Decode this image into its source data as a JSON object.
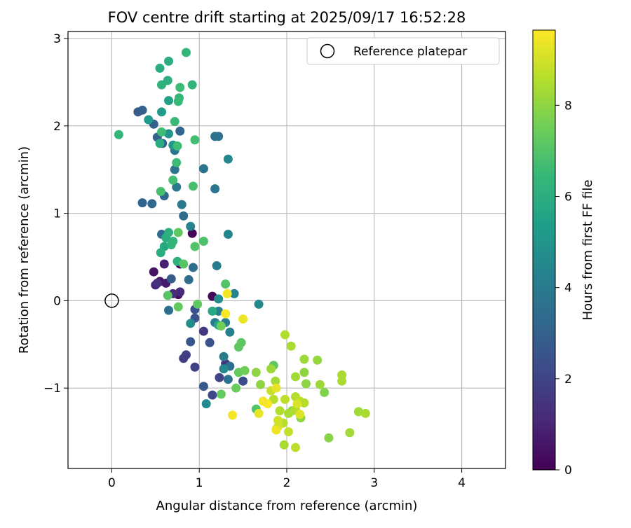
{
  "chart_data": {
    "type": "scatter",
    "title": "FOV centre drift starting at 2025/09/17 16:52:28",
    "xlabel": "Angular distance from reference (arcmin)",
    "ylabel": "Rotation from reference (arcmin)",
    "xlim": [
      -0.5,
      4.5
    ],
    "ylim": [
      -1.92,
      3.08
    ],
    "xticks": [
      0,
      1,
      2,
      3,
      4
    ],
    "yticks": [
      -1,
      0,
      1,
      2,
      3
    ],
    "grid": true,
    "legend": {
      "position": "top-right",
      "entries": [
        "Reference platepar"
      ]
    },
    "reference_point": {
      "x": 0,
      "y": 0,
      "label": "Reference platepar"
    },
    "colorbar": {
      "label": "Hours from first FF file",
      "colormap": "viridis",
      "range": [
        0,
        9.65
      ],
      "ticks": [
        0,
        2,
        4,
        6,
        8
      ]
    },
    "colors": {
      "viridis": [
        "#440154",
        "#482878",
        "#3e4989",
        "#31688e",
        "#26828e",
        "#1f9e89",
        "#35b779",
        "#6ece58",
        "#b5de2b",
        "#fde725"
      ]
    },
    "series": [
      {
        "points": [
          [
            0.92,
            0.77,
            0.1
          ],
          [
            0.78,
            0.42,
            0.15
          ],
          [
            1.15,
            0.05,
            0.2
          ],
          [
            0.76,
            0.07,
            0.3
          ],
          [
            0.48,
            0.33,
            0.5
          ],
          [
            0.55,
            0.22,
            0.6
          ],
          [
            0.62,
            0.2,
            0.7
          ],
          [
            0.6,
            0.42,
            0.9
          ],
          [
            0.5,
            0.18,
            1.0
          ],
          [
            0.78,
            0.1,
            1.1
          ],
          [
            0.7,
            0.08,
            1.2
          ],
          [
            0.52,
            0.2,
            1.3
          ],
          [
            1.3,
            -0.72,
            1.5
          ],
          [
            1.05,
            -0.35,
            1.6
          ],
          [
            0.82,
            -0.66,
            1.7
          ],
          [
            0.85,
            -0.62,
            1.8
          ],
          [
            0.95,
            -0.76,
            1.9
          ],
          [
            1.23,
            -0.88,
            2.0
          ],
          [
            1.15,
            -1.08,
            2.1
          ],
          [
            1.5,
            -0.92,
            2.3
          ],
          [
            0.95,
            -0.1,
            2.4
          ],
          [
            1.12,
            -0.48,
            2.5
          ],
          [
            0.95,
            -0.2,
            2.5
          ],
          [
            0.9,
            -0.47,
            2.6
          ],
          [
            1.05,
            -0.98,
            2.7
          ],
          [
            0.68,
            0.25,
            2.8
          ],
          [
            0.3,
            2.16,
            2.8
          ],
          [
            0.35,
            2.18,
            2.9
          ],
          [
            0.48,
            2.02,
            2.9
          ],
          [
            0.52,
            1.87,
            3.0
          ],
          [
            0.58,
            1.8,
            3.0
          ],
          [
            0.78,
            1.94,
            3.1
          ],
          [
            0.35,
            1.12,
            3.1
          ],
          [
            0.46,
            1.11,
            3.2
          ],
          [
            0.6,
            1.2,
            3.2
          ],
          [
            0.57,
            0.76,
            3.3
          ],
          [
            0.82,
            0.97,
            3.3
          ],
          [
            0.93,
            0.38,
            3.4
          ],
          [
            0.88,
            0.24,
            3.4
          ],
          [
            0.65,
            -0.11,
            3.5
          ],
          [
            1.35,
            -0.75,
            3.5
          ],
          [
            1.33,
            -0.9,
            3.6
          ],
          [
            1.18,
            1.88,
            3.6
          ],
          [
            1.22,
            1.88,
            3.6
          ],
          [
            0.72,
            1.5,
            3.7
          ],
          [
            1.05,
            1.51,
            3.7
          ],
          [
            1.18,
            1.28,
            3.8
          ],
          [
            0.72,
            1.72,
            3.8
          ],
          [
            0.74,
            1.3,
            3.9
          ],
          [
            0.8,
            1.1,
            3.9
          ],
          [
            1.2,
            0.4,
            4.0
          ],
          [
            1.28,
            -0.64,
            4.0
          ],
          [
            1.18,
            -0.25,
            4.0
          ],
          [
            1.22,
            -0.12,
            4.1
          ],
          [
            1.3,
            -0.25,
            4.1
          ],
          [
            1.35,
            -0.36,
            4.2
          ],
          [
            1.4,
            0.08,
            4.3
          ],
          [
            0.9,
            0.85,
            4.3
          ],
          [
            1.33,
            0.76,
            4.4
          ],
          [
            1.33,
            1.62,
            4.5
          ],
          [
            1.28,
            -0.78,
            4.5
          ],
          [
            1.68,
            -0.04,
            4.5
          ],
          [
            1.08,
            -1.18,
            4.6
          ],
          [
            0.9,
            -0.26,
            4.7
          ],
          [
            1.22,
            0.02,
            4.7
          ],
          [
            0.7,
            1.78,
            5.0
          ],
          [
            0.65,
            1.91,
            5.0
          ],
          [
            0.42,
            2.07,
            5.2
          ],
          [
            0.57,
            2.16,
            5.3
          ],
          [
            0.65,
            2.29,
            5.5
          ],
          [
            1.15,
            -0.12,
            5.8
          ],
          [
            1.22,
            -0.28,
            5.8
          ],
          [
            0.6,
            0.62,
            5.8
          ],
          [
            0.55,
            1.8,
            5.9
          ],
          [
            0.62,
            0.72,
            6.0
          ],
          [
            0.56,
            0.55,
            6.0
          ],
          [
            0.65,
            0.78,
            6.1
          ],
          [
            0.68,
            0.64,
            6.2
          ],
          [
            0.75,
            0.45,
            6.2
          ],
          [
            0.7,
            0.68,
            6.3
          ],
          [
            0.55,
            2.66,
            6.0
          ],
          [
            0.65,
            2.74,
            6.0
          ],
          [
            0.57,
            2.47,
            6.2
          ],
          [
            0.64,
            2.52,
            6.1
          ],
          [
            0.85,
            2.84,
            6.4
          ],
          [
            0.92,
            2.47,
            6.3
          ],
          [
            0.78,
            2.44,
            6.6
          ],
          [
            0.77,
            2.32,
            6.4
          ],
          [
            0.76,
            2.28,
            6.5
          ],
          [
            0.72,
            2.05,
            6.5
          ],
          [
            0.08,
            1.9,
            6.4
          ],
          [
            0.57,
            1.93,
            6.6
          ],
          [
            0.95,
            1.84,
            6.7
          ],
          [
            0.75,
            1.77,
            6.6
          ],
          [
            0.74,
            1.58,
            6.6
          ],
          [
            0.7,
            1.38,
            6.7
          ],
          [
            0.56,
            1.25,
            6.8
          ],
          [
            0.93,
            1.31,
            6.8
          ],
          [
            0.95,
            0.62,
            7.0
          ],
          [
            0.82,
            0.42,
            7.1
          ],
          [
            0.76,
            0.78,
            7.2
          ],
          [
            1.05,
            0.68,
            6.9
          ],
          [
            0.64,
            0.06,
            7.1
          ],
          [
            0.76,
            -0.07,
            7.3
          ],
          [
            0.98,
            -0.04,
            7.2
          ],
          [
            1.3,
            0.19,
            7.0
          ],
          [
            1.48,
            -0.48,
            7.2
          ],
          [
            1.45,
            -0.53,
            7.2
          ],
          [
            1.25,
            -0.29,
            7.5
          ],
          [
            1.45,
            -0.82,
            7.3
          ],
          [
            1.52,
            -0.8,
            7.5
          ],
          [
            1.42,
            -1.0,
            7.4
          ],
          [
            1.25,
            -1.07,
            7.3
          ],
          [
            1.65,
            -1.24,
            7.0
          ],
          [
            1.85,
            -0.74,
            7.2
          ],
          [
            1.65,
            -0.82,
            8.0
          ],
          [
            1.7,
            -0.96,
            8.0
          ],
          [
            1.82,
            -0.78,
            8.2
          ],
          [
            1.87,
            -0.92,
            8.3
          ],
          [
            2.1,
            -0.87,
            8.3
          ],
          [
            2.2,
            -0.67,
            8.2
          ],
          [
            2.35,
            -0.68,
            8.1
          ],
          [
            2.2,
            -0.82,
            8.0
          ],
          [
            2.22,
            -0.95,
            8.0
          ],
          [
            2.05,
            -0.52,
            8.4
          ],
          [
            1.98,
            -0.39,
            8.5
          ],
          [
            2.38,
            -0.96,
            8.2
          ],
          [
            2.43,
            -1.05,
            7.8
          ],
          [
            2.63,
            -0.85,
            8.4
          ],
          [
            2.63,
            -0.92,
            8.4
          ],
          [
            2.1,
            -1.1,
            8.5
          ],
          [
            1.82,
            -1.03,
            8.8
          ],
          [
            1.85,
            -1.13,
            8.6
          ],
          [
            1.98,
            -1.13,
            8.7
          ],
          [
            2.06,
            -1.26,
            8.0
          ],
          [
            2.15,
            -1.15,
            8.7
          ],
          [
            2.2,
            -1.17,
            8.6
          ],
          [
            1.92,
            -1.26,
            8.5
          ],
          [
            2.02,
            -1.29,
            8.4
          ],
          [
            2.1,
            -1.25,
            8.5
          ],
          [
            1.96,
            -1.4,
            8.6
          ],
          [
            2.16,
            -1.34,
            8.0
          ],
          [
            1.88,
            -1.47,
            8.9
          ],
          [
            2.02,
            -1.5,
            8.8
          ],
          [
            1.97,
            -1.65,
            8.4
          ],
          [
            2.1,
            -1.68,
            8.7
          ],
          [
            2.48,
            -1.57,
            7.9
          ],
          [
            2.72,
            -1.51,
            8.3
          ],
          [
            2.82,
            -1.27,
            8.3
          ],
          [
            2.9,
            -1.29,
            8.4
          ],
          [
            1.5,
            -0.21,
            9.4
          ],
          [
            1.32,
            0.08,
            9.5
          ],
          [
            1.3,
            -0.15,
            9.6
          ],
          [
            1.38,
            -1.31,
            9.5
          ],
          [
            1.68,
            -1.29,
            9.3
          ],
          [
            1.78,
            -1.18,
            9.6
          ],
          [
            1.73,
            -1.15,
            9.5
          ],
          [
            2.15,
            -1.3,
            9.2
          ],
          [
            2.12,
            -1.18,
            9.1
          ],
          [
            1.88,
            -1.0,
            9.3
          ],
          [
            1.9,
            -1.44,
            9.0
          ],
          [
            1.9,
            -1.37,
            9.0
          ],
          [
            1.88,
            -1.48,
            9.4
          ]
        ]
      }
    ]
  }
}
